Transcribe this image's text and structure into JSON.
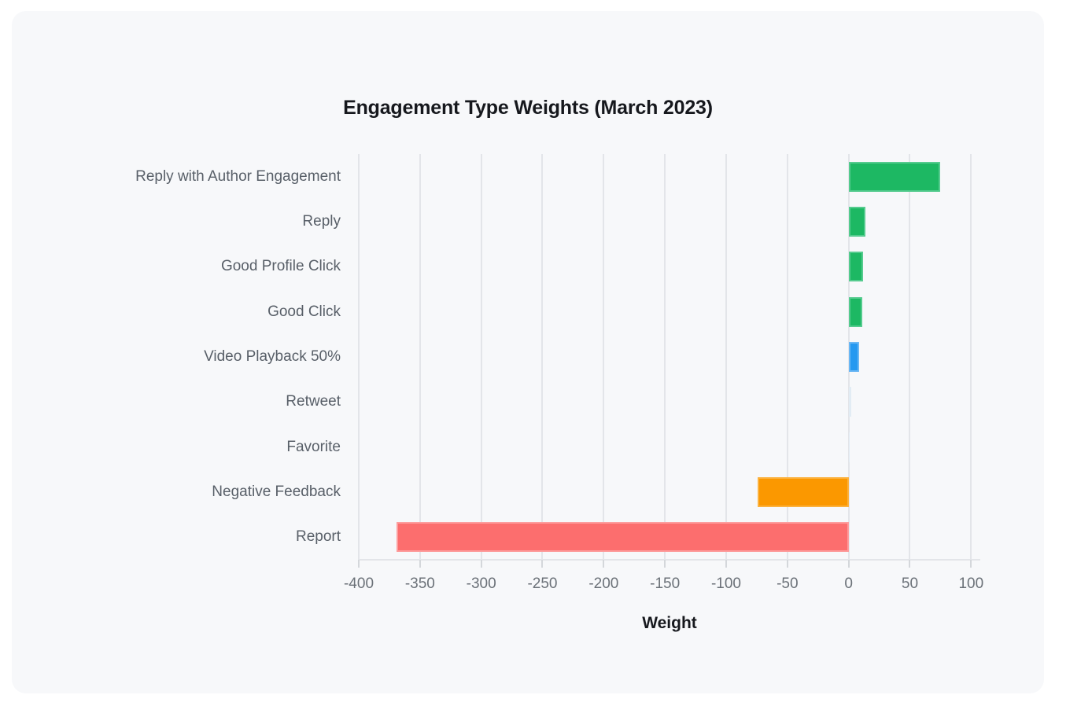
{
  "theme": {
    "page_background": "#ffffff",
    "card_background": "#f7f8fa",
    "grid_color": "#e3e5e9",
    "axis_color": "#e3e5e9",
    "tick_color": "#d4d7db",
    "title_color": "#16181d",
    "label_color": "#585f68",
    "tick_label_color": "#6b7178",
    "positive_color": "#1db863",
    "video_color": "#2699f0",
    "neutral_color": "#d8e5ef",
    "warning_color": "#fb9800",
    "negative_color": "#fc6e6e"
  },
  "chart_data": {
    "type": "bar",
    "orientation": "horizontal",
    "title": "Engagement Type Weights (March 2023)",
    "xlabel": "Weight",
    "ylabel": "",
    "grid": true,
    "legend": false,
    "xlim": [
      -400,
      107.5
    ],
    "x_ticks": [
      -400,
      -350,
      -300,
      -250,
      -200,
      -150,
      -100,
      -50,
      0,
      50,
      100
    ],
    "x_tick_labels": [
      "-400",
      "-350",
      "-300",
      "-250",
      "-200",
      "-150",
      "-100",
      "-50",
      "0",
      "50",
      "100"
    ],
    "categories": [
      "Reply with Author Engagement",
      "Reply",
      "Good Profile Click",
      "Good Click",
      "Video Playback 50%",
      "Retweet",
      "Favorite",
      "Negative Feedback",
      "Report"
    ],
    "values": [
      75,
      13.5,
      12,
      11,
      8.5,
      1,
      0.5,
      -74,
      -369
    ],
    "bar_colors": [
      "#1db863",
      "#1db863",
      "#1db863",
      "#1db863",
      "#2699f0",
      "#d8e5ef",
      "#d8e5ef",
      "#fb9800",
      "#fc6e6e"
    ],
    "bar_strokes": [
      "#55cb8e",
      "#55cb8e",
      "#55cb8e",
      "#55cb8e",
      "#6ab7f4",
      "#e2ecf4",
      "#e2ecf4",
      "#fcb23e",
      "#fd9d9d"
    ]
  }
}
